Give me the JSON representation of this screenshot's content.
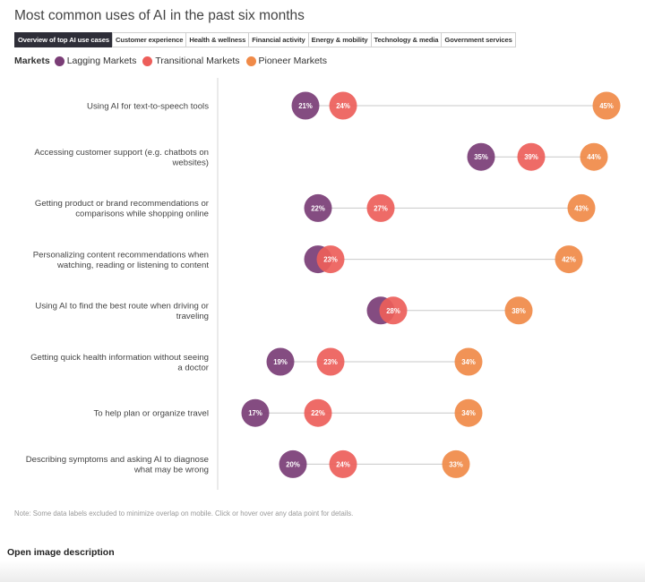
{
  "tabs": [
    {
      "label": "Overview of top AI use cases",
      "active": true
    },
    {
      "label": "Customer experience",
      "active": false
    },
    {
      "label": "Health & wellness",
      "active": false
    },
    {
      "label": "Financial activity",
      "active": false
    },
    {
      "label": "Energy & mobility",
      "active": false
    },
    {
      "label": "Technology & media",
      "active": false
    },
    {
      "label": "Government services",
      "active": false
    }
  ],
  "legend": {
    "title": "Markets",
    "items": [
      {
        "name": "Lagging Markets",
        "color": "#7a3d76"
      },
      {
        "name": "Transitional Markets",
        "color": "#ed5e5a"
      },
      {
        "name": "Pioneer Markets",
        "color": "#f08a48"
      }
    ]
  },
  "note": "Note: Some data labels excluded to minimize overlap on mobile. Click or hover over any data point for details.",
  "footer": {
    "open_description": "Open image description"
  },
  "chart_data": {
    "type": "dot-plot",
    "title": "Most common uses of AI in the past six months",
    "categories": [
      "Using AI for text-to-speech tools",
      "Accessing customer support (e.g. chatbots on websites)",
      "Getting product or brand recommendations or comparisons while shopping online",
      "Personalizing content recommendations when watching, reading or listening to content",
      "Using AI to find the best route when driving or traveling",
      "Getting quick health information without seeing a doctor",
      "To help plan or organize travel",
      "Describing symptoms and asking AI to diagnose what may be wrong"
    ],
    "category_lines": [
      [
        "Using AI for text-to-speech tools"
      ],
      [
        "Accessing customer support (e.g. chatbots on",
        "websites)"
      ],
      [
        "Getting product or brand recommendations or",
        "comparisons while shopping online"
      ],
      [
        "Personalizing content recommendations when",
        "watching, reading or listening to content"
      ],
      [
        "Using AI to find the best route when driving or",
        "traveling"
      ],
      [
        "Getting quick health information without seeing",
        "a doctor"
      ],
      [
        "To help plan or organize travel"
      ],
      [
        "Describing symptoms and asking AI to diagnose",
        "what may be wrong"
      ]
    ],
    "series": [
      {
        "name": "Lagging Markets",
        "color": "#7a3d76",
        "values": [
          21,
          35,
          22,
          22,
          27,
          19,
          17,
          20
        ],
        "labels": [
          "21%",
          "35%",
          "22%",
          "",
          "",
          "19%",
          "17%",
          "20%"
        ]
      },
      {
        "name": "Transitional Markets",
        "color": "#ed5e5a",
        "values": [
          24,
          39,
          27,
          23,
          28,
          23,
          22,
          24
        ],
        "labels": [
          "24%",
          "39%",
          "27%",
          "23%",
          "28%",
          "23%",
          "22%",
          "24%"
        ]
      },
      {
        "name": "Pioneer Markets",
        "color": "#f08a48",
        "values": [
          45,
          44,
          43,
          42,
          38,
          34,
          34,
          33
        ],
        "labels": [
          "45%",
          "44%",
          "43%",
          "42%",
          "38%",
          "34%",
          "34%",
          "33%"
        ]
      }
    ],
    "xlim": [
      15,
      45
    ],
    "grid": false,
    "legend_position": "top-left"
  }
}
